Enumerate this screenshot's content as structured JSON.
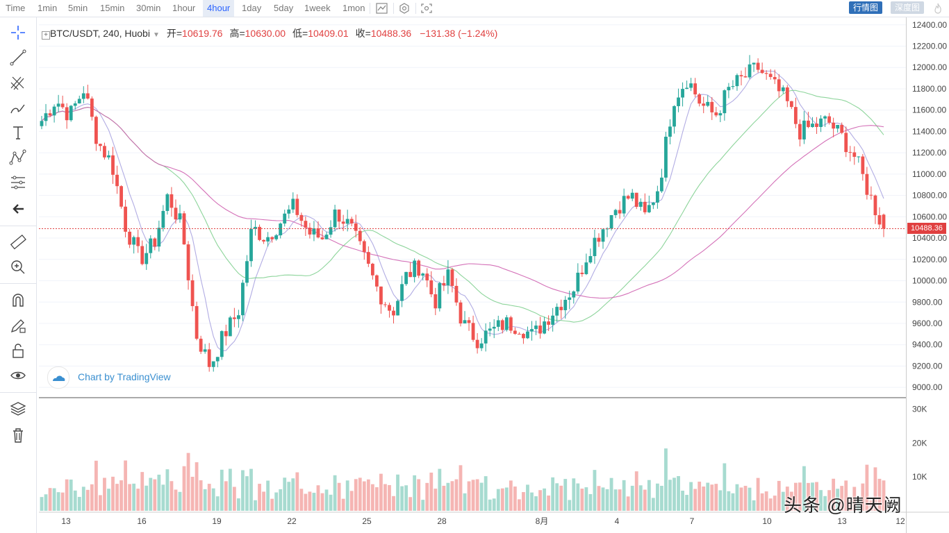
{
  "toolbar": {
    "timeframes": [
      "Time",
      "1min",
      "5min",
      "15min",
      "30min",
      "1hour",
      "4hour",
      "1day",
      "5day",
      "1week",
      "1mon"
    ],
    "active_timeframe": "4hour",
    "tab_market": "行情图",
    "tab_depth": "深度图"
  },
  "legend": {
    "symbol": "BTC/USDT, 240, Huobi",
    "open_label": "开=",
    "open_value": "10619.76",
    "high_label": "高=",
    "high_value": "10630.00",
    "low_label": "低=",
    "low_value": "10409.01",
    "close_label": "收=",
    "close_value": "10488.36",
    "change": "−131.38 (−1.24%)"
  },
  "attribution": "Chart by TradingView",
  "last_price": "10488.36",
  "watermark": "头条 @晴天阙",
  "colors": {
    "up": "#26a69a",
    "down": "#ef5350",
    "accent": "#2f6fb8",
    "price_line": "#e04040"
  },
  "chart_data": {
    "type": "candlestick",
    "title": "BTC/USDT, 240, Huobi",
    "y_ticks": [
      9000,
      9200,
      9400,
      9600,
      9800,
      10000,
      10200,
      10400,
      10600,
      10800,
      11000,
      11200,
      11400,
      11600,
      11800,
      12000,
      12200,
      12400
    ],
    "y_tick_labels": [
      "9000.00",
      "9200.00",
      "9400.00",
      "9600.00",
      "9800.00",
      "10000.00",
      "10200.00",
      "10400.00",
      "10600.00",
      "10800.00",
      "11000.00",
      "11200.00",
      "11400.00",
      "11600.00",
      "11800.00",
      "12000.00",
      "12200.00",
      "12400.00"
    ],
    "ylim": [
      8910,
      12470
    ],
    "x_labels": [
      "13",
      "16",
      "19",
      "22",
      "25",
      "28",
      "8月",
      "4",
      "7",
      "10",
      "13",
      "12"
    ],
    "volume_ticks": [
      "10K",
      "20K",
      "30K"
    ],
    "volume_ylim": [
      0,
      33000
    ],
    "anchors": [
      11500,
      11700,
      11550,
      11800,
      11300,
      11100,
      10500,
      10200,
      10350,
      10800,
      10500,
      9500,
      9200,
      9500,
      9700,
      10500,
      10400,
      10550,
      10700,
      10450,
      10400,
      10650,
      10500,
      10200,
      9900,
      9700,
      10050,
      10150,
      9800,
      10050,
      9600,
      9450,
      9520,
      9600,
      9580,
      9480,
      9650,
      9800,
      9950,
      10300,
      10500,
      10700,
      10800,
      10600,
      10900,
      11700,
      11900,
      11650,
      11550,
      11800,
      11900,
      12000,
      11850,
      11700,
      11400,
      11450,
      11500,
      11350,
      11150,
      10800,
      10488.36
    ]
  }
}
